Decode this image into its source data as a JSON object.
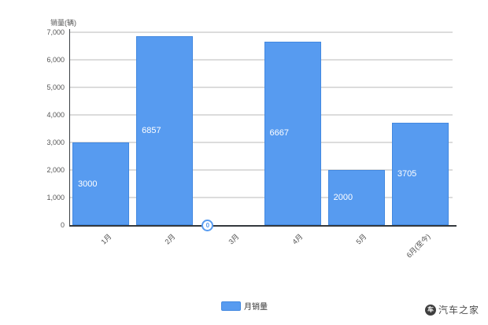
{
  "chart_data": {
    "type": "bar",
    "title": "",
    "ylabel": "销量(辆)",
    "xlabel": "",
    "categories": [
      "1月",
      "2月",
      "3月",
      "4月",
      "5月",
      "6月(至今)"
    ],
    "values": [
      3000,
      6857,
      0,
      6667,
      2000,
      3705
    ],
    "value_labels": [
      "3000",
      "6857",
      "0",
      "6667",
      "2000",
      "3705"
    ],
    "y_ticks": [
      "7,000",
      "6,000",
      "5,000",
      "4,000",
      "3,000",
      "2,000",
      "1,000",
      "0"
    ],
    "ylim": [
      0,
      7000
    ],
    "y_step": 1000,
    "grid": true,
    "bar_color": "#579bf0",
    "legend_position": "bottom"
  },
  "legend": {
    "label": "月销量",
    "swatch_color": "#579bf0"
  },
  "watermark": {
    "text": "汽车之家",
    "logo_glyph": "车"
  }
}
